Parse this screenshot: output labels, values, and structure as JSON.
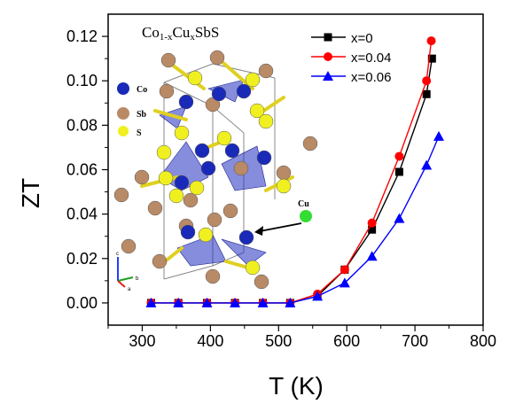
{
  "chart_data": {
    "type": "line",
    "title": "",
    "inset_title": {
      "base": "Co",
      "sub1": "1-x",
      "mid": "Cu",
      "sub2": "x",
      "end": "SbS"
    },
    "xlabel": "T (K)",
    "ylabel": "ZT",
    "xlim": [
      250,
      800
    ],
    "ylim": [
      -0.01,
      0.13
    ],
    "xticks": [
      300,
      400,
      500,
      600,
      700,
      800
    ],
    "yticks": [
      0.0,
      0.02,
      0.04,
      0.06,
      0.08,
      0.1,
      0.12
    ],
    "xtick_labels": [
      "300",
      "400",
      "500",
      "600",
      "700",
      "800"
    ],
    "ytick_labels": [
      "0.00",
      "0.02",
      "0.04",
      "0.06",
      "0.08",
      "0.10",
      "0.12"
    ],
    "legend_position": "top-right",
    "series": [
      {
        "name": "x=0",
        "color": "#000000",
        "marker": "square",
        "x": [
          313,
          353,
          395,
          436,
          477,
          517,
          557,
          597,
          637,
          677,
          717,
          725
        ],
        "y": [
          0.0,
          0.0,
          0.0,
          0.0,
          0.0,
          0.0,
          0.003,
          0.015,
          0.033,
          0.059,
          0.094,
          0.11
        ]
      },
      {
        "name": "x=0.04",
        "color": "#ff0000",
        "marker": "circle",
        "x": [
          313,
          353,
          395,
          436,
          477,
          517,
          557,
          597,
          637,
          677,
          717,
          724
        ],
        "y": [
          0.0,
          0.0,
          0.0,
          0.0,
          0.0,
          0.0,
          0.004,
          0.015,
          0.036,
          0.066,
          0.1,
          0.118
        ]
      },
      {
        "name": "x=0.06",
        "color": "#0000ff",
        "marker": "triangle",
        "x": [
          313,
          353,
          395,
          436,
          477,
          517,
          557,
          597,
          637,
          677,
          717,
          735
        ],
        "y": [
          0.0,
          0.0,
          0.0,
          0.0,
          0.0,
          0.0,
          0.003,
          0.009,
          0.021,
          0.038,
          0.062,
          0.075
        ]
      }
    ],
    "inset": {
      "legend": [
        {
          "label": "Co",
          "color": "#1a2ab8"
        },
        {
          "label": "Sb",
          "color": "#b88a66"
        },
        {
          "label": "S",
          "color": "#f0f020"
        }
      ],
      "cu_label": "Cu",
      "cu_color": "#33dd33",
      "axis_labels": [
        "c",
        "b",
        "a"
      ]
    }
  }
}
